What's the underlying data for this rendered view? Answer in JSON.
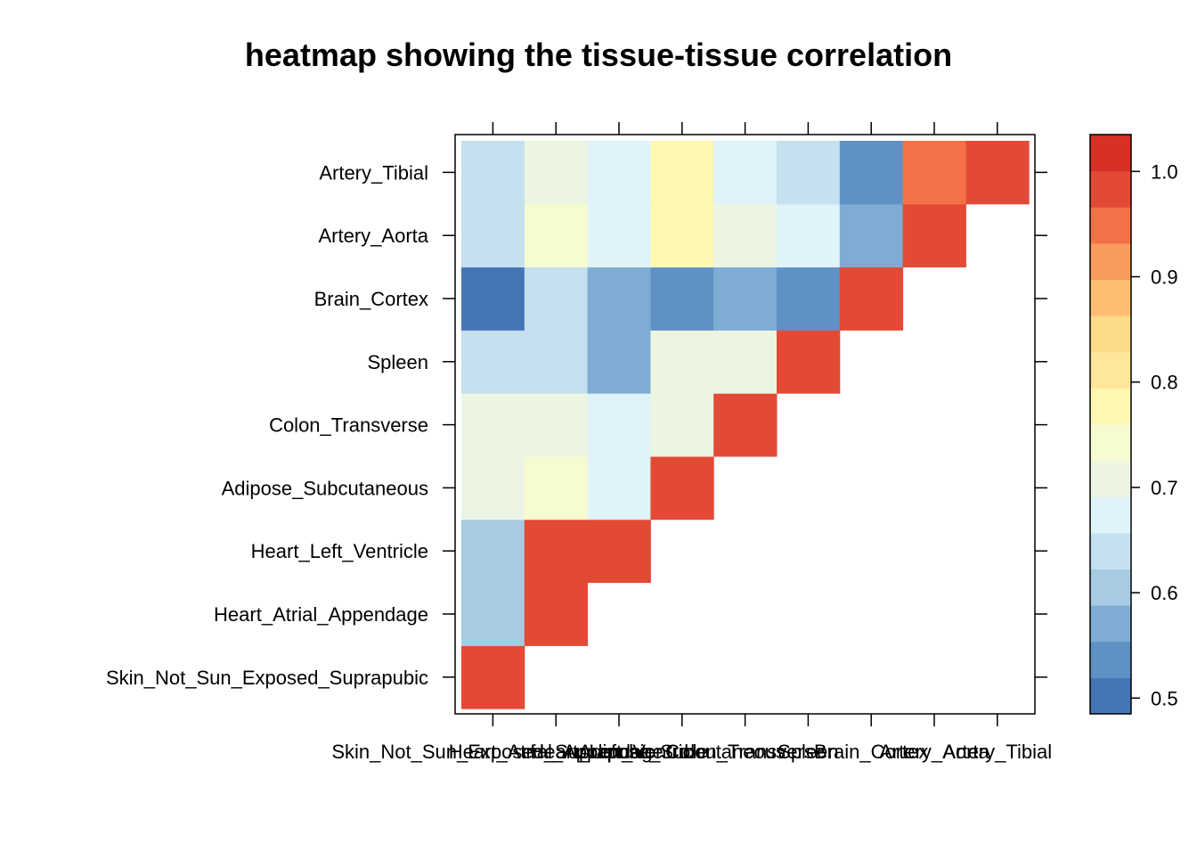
{
  "chart_data": {
    "type": "heatmap",
    "title": "heatmap showing the tissue-tissue correlation",
    "tissues": [
      "Skin_Not_Sun_Exposed_Suprapubic",
      "Heart_Atrial_Appendage",
      "Heart_Left_Ventricle",
      "Adipose_Subcutaneous",
      "Colon_Transverse",
      "Spleen",
      "Brain_Cortex",
      "Artery_Aorta",
      "Artery_Tibial"
    ],
    "matrix": [
      [
        1.0,
        null,
        null,
        null,
        null,
        null,
        null,
        null,
        null
      ],
      [
        0.61,
        1.0,
        null,
        null,
        null,
        null,
        null,
        null,
        null
      ],
      [
        0.61,
        0.97,
        1.0,
        null,
        null,
        null,
        null,
        null,
        null
      ],
      [
        0.71,
        0.74,
        0.68,
        1.0,
        null,
        null,
        null,
        null,
        null
      ],
      [
        0.71,
        0.71,
        0.68,
        0.71,
        1.0,
        null,
        null,
        null,
        null
      ],
      [
        0.64,
        0.64,
        0.56,
        0.71,
        0.71,
        1.0,
        null,
        null,
        null
      ],
      [
        0.51,
        0.63,
        0.56,
        0.54,
        0.56,
        0.54,
        1.0,
        null,
        null
      ],
      [
        0.64,
        0.74,
        0.68,
        0.77,
        0.71,
        0.68,
        0.56,
        1.0,
        null
      ],
      [
        0.64,
        0.71,
        0.68,
        0.77,
        0.68,
        0.64,
        0.54,
        0.95,
        1.0
      ]
    ],
    "colorbar": {
      "range": [
        0.485,
        1.035
      ],
      "ticks": [
        0.5,
        0.6,
        0.7,
        0.8,
        0.9,
        1.0
      ],
      "tick_labels": [
        "0.5",
        "0.6",
        "0.7",
        "0.8",
        "0.9",
        "1.0"
      ],
      "colors": [
        "#4575B4",
        "#5F91C4",
        "#7EACD3",
        "#A6CBE3",
        "#C5E0EE",
        "#E0F3F8",
        "#EBF5E1",
        "#F7FBD0",
        "#FEF7B1",
        "#FEE69B",
        "#FDDA8A",
        "#FDBE74",
        "#FA9B5E",
        "#F47148",
        "#E34A36",
        "#D73027"
      ]
    },
    "legend_position": "right"
  }
}
